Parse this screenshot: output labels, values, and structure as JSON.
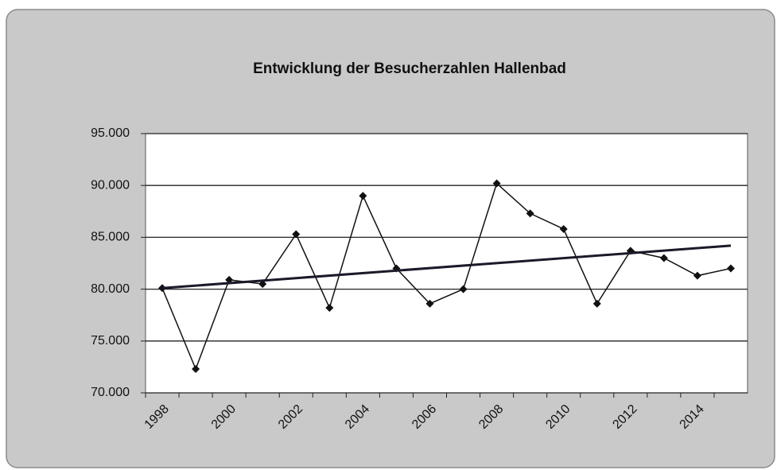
{
  "chart_data": {
    "type": "line",
    "title": "Entwicklung der Besucherzahlen Hallenbad",
    "categories": [
      "1998",
      null,
      "2000",
      null,
      "2002",
      null,
      "2004",
      null,
      "2006",
      null,
      "2008",
      null,
      "2010",
      null,
      "2012",
      null,
      "2014",
      null
    ],
    "series": [
      {
        "color": "#111111",
        "values": [
          80100,
          72300,
          80900,
          80500,
          85300,
          78200,
          89000,
          82000,
          78600,
          80000,
          90200,
          87300,
          85800,
          78600,
          83700,
          83000,
          81300,
          82000
        ]
      }
    ],
    "trend": {
      "color": "#1a1a2a",
      "values": [
        80100,
        84200
      ]
    },
    "ylim": [
      70000,
      95000
    ],
    "yticks": [
      {
        "value": 70000,
        "label": "70.000"
      },
      {
        "value": 75000,
        "label": "75.000"
      },
      {
        "value": 80000,
        "label": "80.000"
      },
      {
        "value": 85000,
        "label": "85.000"
      },
      {
        "value": 90000,
        "label": "90.000"
      },
      {
        "value": 95000,
        "label": "95.000"
      }
    ],
    "grid": true
  }
}
